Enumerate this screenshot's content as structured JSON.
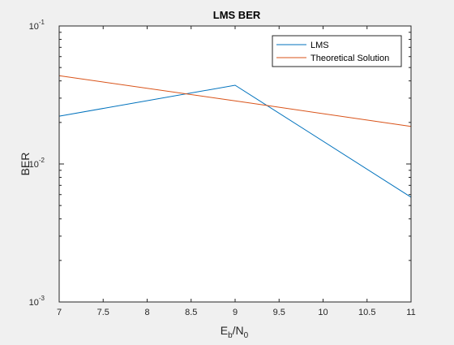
{
  "chart_data": {
    "type": "line",
    "title": "LMS BER",
    "xlabel_main": "E",
    "xlabel_sub1": "b",
    "xlabel_mid": "/N",
    "xlabel_sub2": "0",
    "ylabel": "BER",
    "xlim": [
      7,
      11
    ],
    "ylim": [
      0.001,
      0.1
    ],
    "yscale": "log",
    "grid": false,
    "legend_position": "top-right",
    "x_ticks": [
      "7",
      "7.5",
      "8",
      "8.5",
      "9",
      "9.5",
      "10",
      "10.5",
      "11"
    ],
    "y_ticks": [
      {
        "base": "10",
        "exp": "-3",
        "value": 0.001
      },
      {
        "base": "10",
        "exp": "-2",
        "value": 0.01
      },
      {
        "base": "10",
        "exp": "-1",
        "value": 0.1
      }
    ],
    "series": [
      {
        "name": "LMS",
        "color": "#0072BD",
        "x": [
          7,
          9,
          11
        ],
        "y": [
          0.0222,
          0.0372,
          0.00575
        ]
      },
      {
        "name": "Theoretical Solution",
        "color": "#D95319",
        "x": [
          7,
          9,
          11
        ],
        "y": [
          0.0436,
          0.0287,
          0.0187
        ]
      }
    ]
  }
}
